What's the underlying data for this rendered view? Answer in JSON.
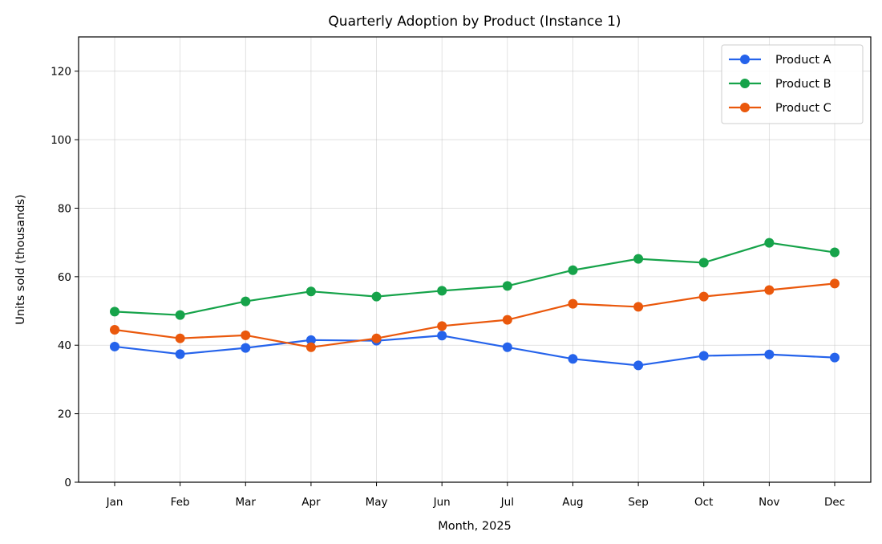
{
  "chart_data": {
    "type": "line",
    "title": "Quarterly Adoption by Product (Instance 1)",
    "xlabel": "Month, 2025",
    "ylabel": "Units sold (thousands)",
    "categories": [
      "Jan",
      "Feb",
      "Mar",
      "Apr",
      "May",
      "Jun",
      "Jul",
      "Aug",
      "Sep",
      "Oct",
      "Nov",
      "Dec"
    ],
    "ylim": [
      0,
      130
    ],
    "yticks": [
      0,
      20,
      40,
      60,
      80,
      100,
      120
    ],
    "grid": true,
    "legend_position": "top-right",
    "series": [
      {
        "name": "Product A",
        "color": "#2563eb",
        "values": [
          39.6,
          37.4,
          39.2,
          41.5,
          41.3,
          42.8,
          39.4,
          36.0,
          34.1,
          36.9,
          37.3,
          36.4
        ]
      },
      {
        "name": "Product B",
        "color": "#16a34a",
        "values": [
          49.8,
          48.8,
          52.8,
          55.7,
          54.2,
          55.9,
          57.3,
          61.9,
          65.2,
          64.1,
          69.9,
          67.1
        ]
      },
      {
        "name": "Product C",
        "color": "#ea580c",
        "values": [
          44.5,
          42.0,
          42.9,
          39.4,
          42.0,
          45.6,
          47.4,
          52.1,
          51.2,
          54.2,
          56.1,
          58.0
        ]
      }
    ]
  }
}
